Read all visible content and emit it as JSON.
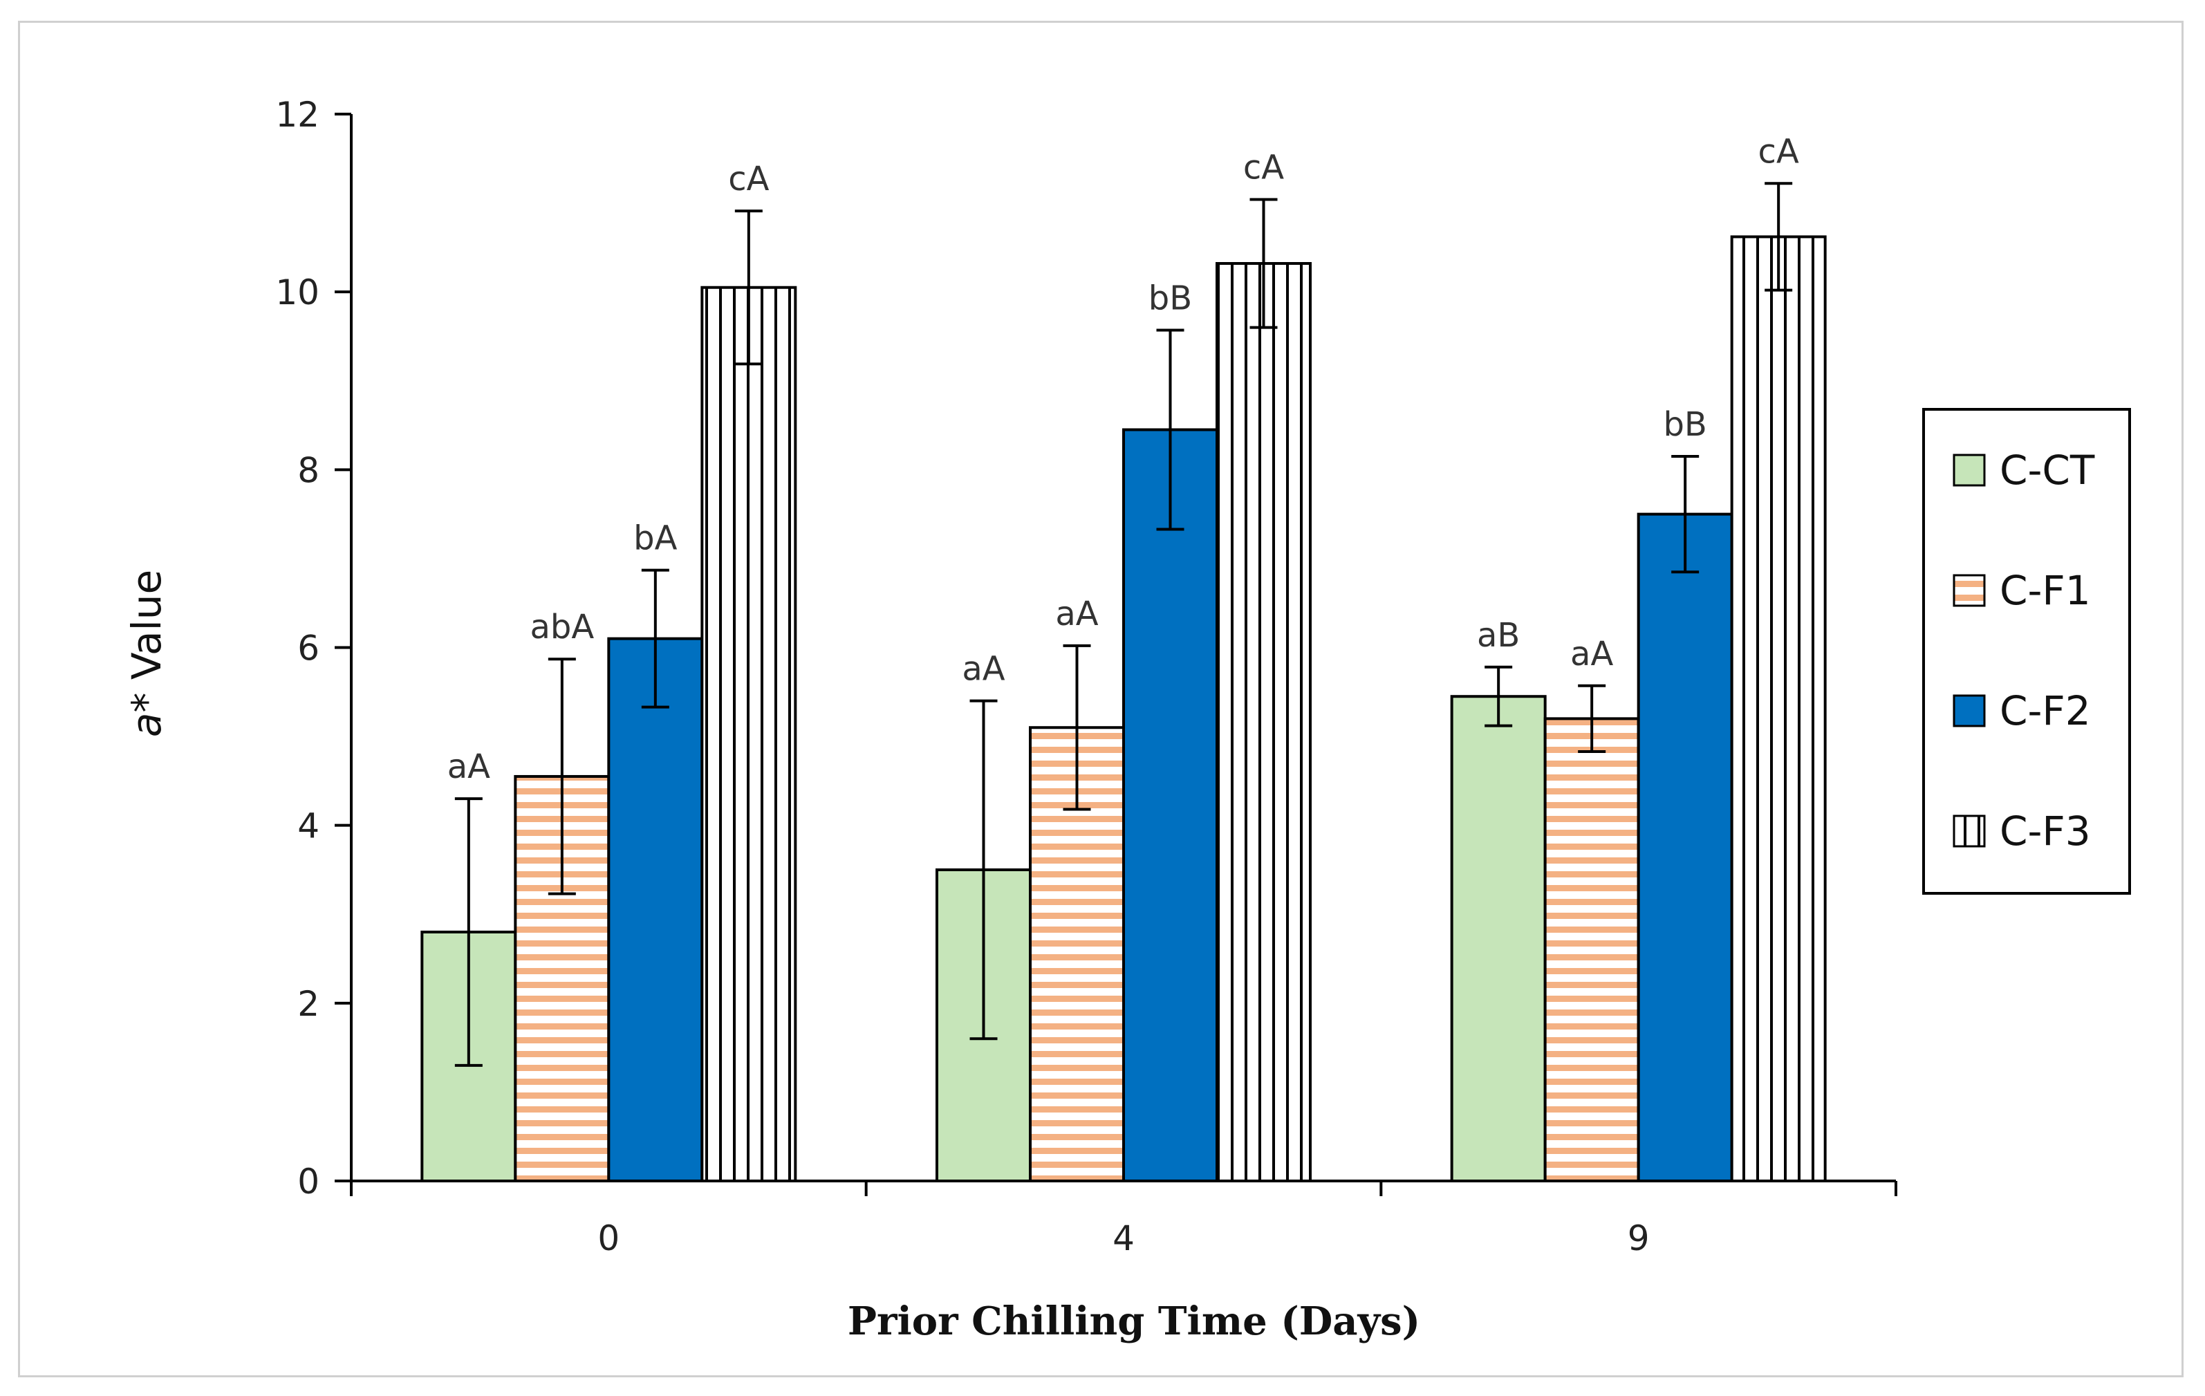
{
  "chart_data": {
    "type": "bar",
    "xlabel": "Prior Chilling Time (Days)",
    "ylabel_italic": "a",
    "ylabel_rest": "* Value",
    "categories": [
      "0",
      "4",
      "9"
    ],
    "ylim": [
      0,
      12
    ],
    "yticks": [
      0,
      2,
      4,
      6,
      8,
      10,
      12
    ],
    "grid": false,
    "legend_position": "right",
    "series": [
      {
        "name": "C-CT",
        "fill": "#c6e5b9",
        "pattern": "solid",
        "values": [
          2.8,
          3.5,
          5.45
        ],
        "errors": [
          1.5,
          1.9,
          0.33
        ],
        "letters": [
          "aA",
          "aA",
          "aB"
        ]
      },
      {
        "name": "C-F1",
        "fill": "#f4b183",
        "pattern": "horizontal-stripes",
        "values": [
          4.55,
          5.1,
          5.2
        ],
        "errors": [
          1.32,
          0.92,
          0.37
        ],
        "letters": [
          "abA",
          "aA",
          "aA"
        ]
      },
      {
        "name": "C-F2",
        "fill": "#0070c0",
        "pattern": "solid",
        "values": [
          6.1,
          8.45,
          7.5
        ],
        "errors": [
          0.77,
          1.12,
          0.65
        ],
        "letters": [
          "bA",
          "bB",
          "bB"
        ]
      },
      {
        "name": "C-F3",
        "fill": "#ffffff",
        "pattern": "vertical-stripes",
        "values": [
          10.05,
          10.32,
          10.62
        ],
        "errors": [
          0.86,
          0.72,
          0.6
        ],
        "letters": [
          "cA",
          "cA",
          "cA"
        ]
      }
    ]
  }
}
